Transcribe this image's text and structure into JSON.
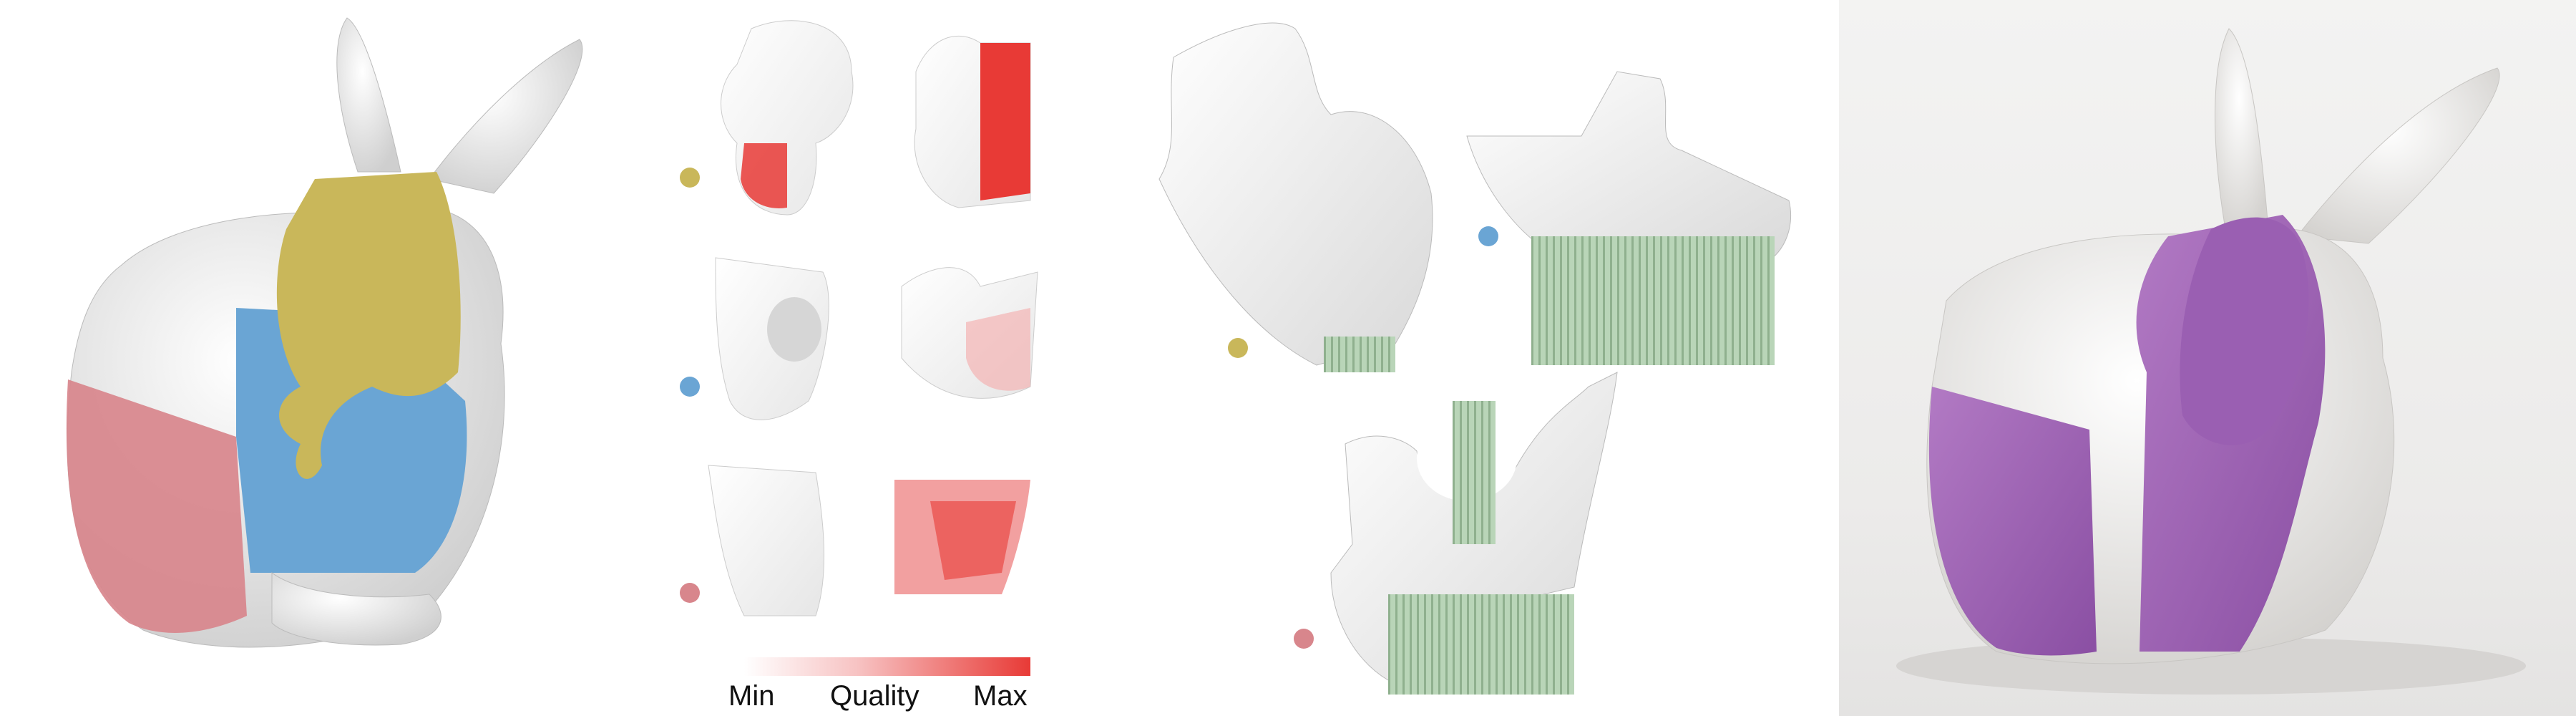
{
  "legend": {
    "min_label": "Min",
    "title": "Quality",
    "max_label": "Max",
    "gradient": [
      "#ffffff",
      "#f7c2c2",
      "#e83a36"
    ]
  },
  "colors": {
    "part_yellow": "#c9b75a",
    "part_blue": "#6aa5d4",
    "part_pink": "#d8868c",
    "support_green": "#a8c9a8",
    "print_purple": "#a060b8",
    "quality_red": "#e83a36"
  }
}
